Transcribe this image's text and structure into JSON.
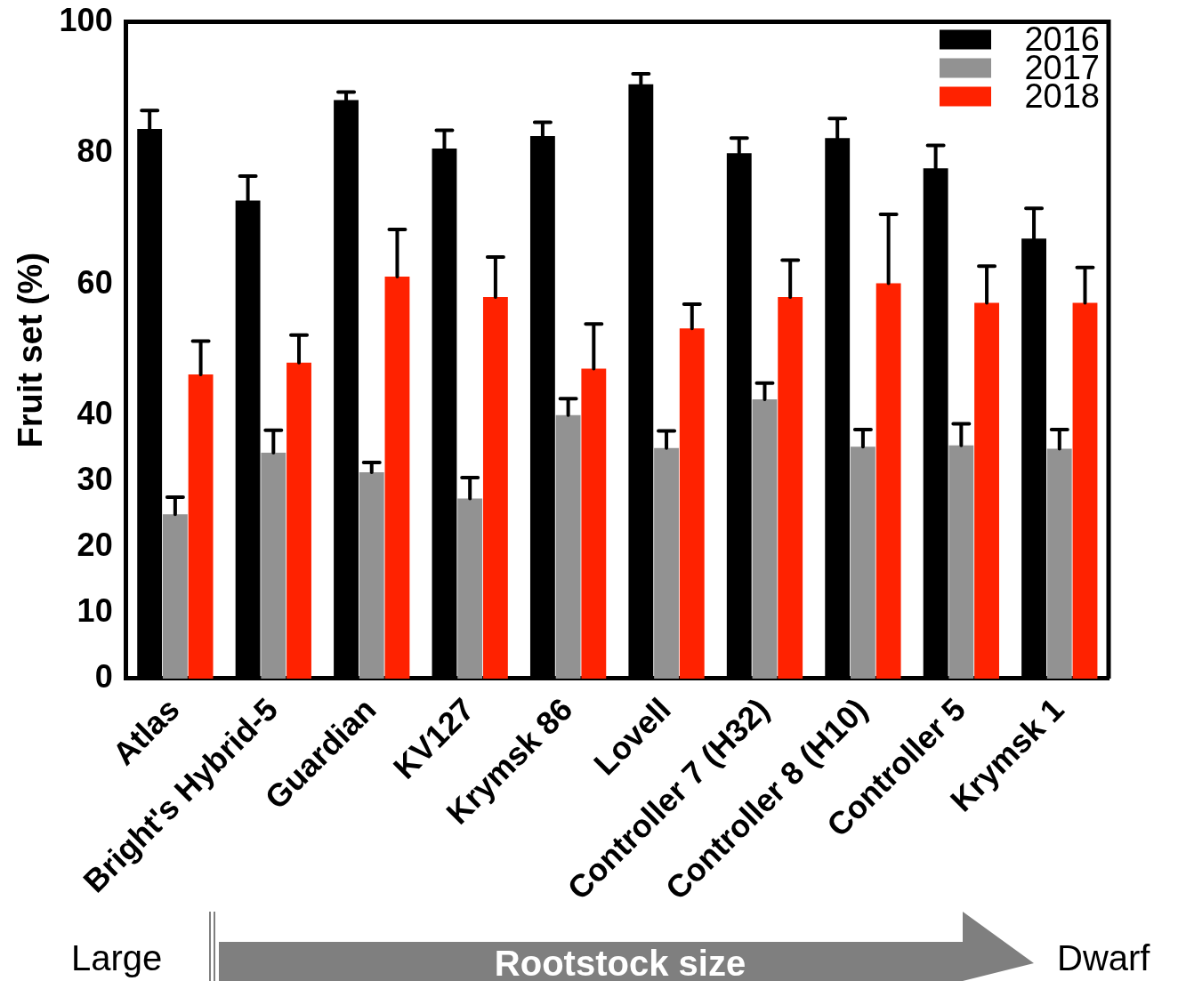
{
  "chart_data": {
    "type": "bar",
    "ylabel": "Fruit set (%)",
    "categories": [
      "Atlas",
      "Bright's Hybrid-5",
      "Guardian",
      "KV127",
      "Krymsk 86",
      "Lovell",
      "Controller 7 (H32)",
      "Controller 8 (H10)",
      "Controller 5",
      "Krymsk 1"
    ],
    "series": [
      {
        "name": "2016",
        "color": "#000000",
        "values": [
          83.7,
          72.8,
          88.1,
          80.7,
          82.6,
          90.5,
          80.0,
          82.3,
          77.7,
          67.0
        ],
        "errors": [
          [
            83.7,
            86.5
          ],
          [
            72.8,
            76.5
          ],
          [
            88.1,
            89.3
          ],
          [
            80.7,
            83.5
          ],
          [
            82.6,
            84.7
          ],
          [
            90.5,
            92.1
          ],
          [
            80.0,
            82.3
          ],
          [
            82.3,
            85.3
          ],
          [
            77.7,
            81.2
          ],
          [
            67.0,
            71.6
          ]
        ]
      },
      {
        "name": "2017",
        "color": "#929292",
        "values": [
          25.0,
          34.4,
          31.4,
          27.4,
          40.1,
          35.1,
          42.5,
          35.3,
          35.5,
          35.0
        ],
        "errors": [
          [
            25.0,
            27.6
          ],
          [
            34.4,
            37.8
          ],
          [
            31.4,
            32.9
          ],
          [
            27.4,
            30.6
          ],
          [
            40.1,
            42.6
          ],
          [
            35.1,
            37.7
          ],
          [
            42.5,
            45.0
          ],
          [
            35.3,
            37.9
          ],
          [
            35.5,
            38.8
          ],
          [
            35.0,
            37.9
          ]
        ]
      },
      {
        "name": "2018",
        "color": "#ff2200",
        "values": [
          46.3,
          48.1,
          61.2,
          58.1,
          47.2,
          53.3,
          58.1,
          60.2,
          57.2,
          57.2
        ],
        "errors": [
          [
            46.3,
            51.4
          ],
          [
            48.1,
            52.3
          ],
          [
            61.2,
            68.4
          ],
          [
            58.1,
            64.2
          ],
          [
            47.2,
            54.0
          ],
          [
            53.3,
            57.0
          ],
          [
            58.1,
            63.7
          ],
          [
            60.2,
            70.7
          ],
          [
            57.2,
            62.8
          ],
          [
            57.2,
            62.6
          ]
        ]
      }
    ],
    "ylim": [
      0,
      100
    ],
    "yticks": [
      0,
      10,
      20,
      30,
      40,
      60,
      80,
      100
    ],
    "grid": false,
    "legend": "top right",
    "annotations": [
      "Large",
      "Rootstock size",
      "Dwarf"
    ]
  }
}
